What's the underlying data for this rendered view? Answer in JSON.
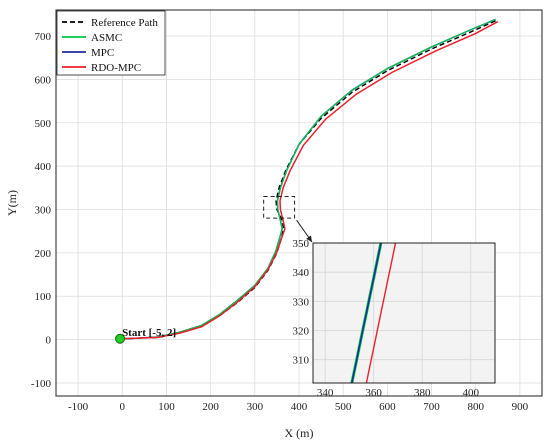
{
  "chart_data": {
    "type": "line",
    "title": "",
    "xlabel": "X (m)",
    "ylabel": "Y(m)",
    "xlim": [
      -150,
      950
    ],
    "ylim": [
      -130,
      760
    ],
    "xticks": [
      -100,
      0,
      100,
      200,
      300,
      400,
      500,
      600,
      700,
      800,
      900
    ],
    "yticks": [
      -100,
      0,
      100,
      200,
      300,
      400,
      500,
      600,
      700
    ],
    "grid": true,
    "legend_position": "top-left",
    "series": [
      {
        "name": "Reference Path",
        "color": "#000000",
        "style": "dashed",
        "x": [
          -5,
          30,
          80,
          130,
          180,
          220,
          260,
          300,
          330,
          350,
          362,
          365,
          360,
          350,
          348,
          355,
          370,
          400,
          450,
          520,
          600,
          700,
          790,
          845
        ],
        "y": [
          2,
          3,
          5,
          15,
          30,
          55,
          85,
          120,
          160,
          200,
          240,
          260,
          280,
          300,
          320,
          350,
          390,
          450,
          510,
          570,
          620,
          670,
          710,
          735
        ]
      },
      {
        "name": "ASMC",
        "color": "#00cc44",
        "style": "solid",
        "x": [
          -5,
          30,
          80,
          130,
          180,
          220,
          260,
          300,
          330,
          348,
          358,
          362,
          358,
          352,
          351,
          358,
          372,
          400,
          450,
          520,
          600,
          700,
          790,
          845
        ],
        "y": [
          2,
          3,
          6,
          17,
          33,
          58,
          90,
          125,
          165,
          205,
          240,
          255,
          275,
          300,
          320,
          350,
          390,
          450,
          515,
          575,
          625,
          675,
          715,
          738
        ]
      },
      {
        "name": "MPC",
        "color": "#1f2a9e",
        "style": "solid",
        "x": [
          -5,
          30,
          80,
          130,
          180,
          220,
          260,
          300,
          330,
          348,
          358,
          362,
          358,
          352,
          351,
          358,
          372,
          400,
          450,
          520,
          600,
          700,
          790,
          845
        ],
        "y": [
          2,
          3,
          6,
          17,
          33,
          58,
          90,
          125,
          165,
          205,
          240,
          255,
          275,
          300,
          320,
          350,
          390,
          450,
          515,
          575,
          625,
          675,
          715,
          738
        ]
      },
      {
        "name": "RDO-MPC",
        "color": "#e8202a",
        "style": "solid",
        "x": [
          -5,
          30,
          80,
          130,
          180,
          220,
          260,
          300,
          330,
          350,
          362,
          368,
          364,
          358,
          357,
          364,
          380,
          410,
          460,
          530,
          610,
          710,
          800,
          850
        ],
        "y": [
          2,
          3,
          5,
          15,
          30,
          55,
          86,
          122,
          162,
          202,
          238,
          255,
          275,
          300,
          320,
          350,
          390,
          448,
          508,
          566,
          616,
          666,
          706,
          733
        ]
      }
    ],
    "annotation": {
      "label": "Start [-5, 2]",
      "x": -5,
      "y": 2
    },
    "zoom_box": {
      "xlim": [
        320,
        390
      ],
      "ylim": [
        280,
        330
      ]
    },
    "inset": {
      "xlim": [
        335,
        410
      ],
      "ylim": [
        302,
        350
      ],
      "xticks": [
        340,
        360,
        380,
        400
      ],
      "yticks": [
        310,
        320,
        330,
        340,
        350
      ],
      "series": [
        {
          "name": "ASMC",
          "color": "#00cc44",
          "width": 3,
          "x": [
            351,
            352.5,
            354,
            355.5,
            357,
            358.5,
            360,
            361.5,
            363
          ],
          "y": [
            302,
            308,
            314,
            320,
            326,
            332,
            338,
            344,
            350
          ]
        },
        {
          "name": "MPC",
          "color": "#1f2a9e",
          "width": 1.6,
          "x": [
            351,
            352.5,
            354,
            355.5,
            357,
            358.5,
            360,
            361.5,
            363
          ],
          "y": [
            302,
            308,
            314,
            320,
            326,
            332,
            338,
            344,
            350
          ]
        },
        {
          "name": "RDO-MPC",
          "color": "#e8202a",
          "width": 1.4,
          "x": [
            357,
            358.5,
            360,
            361.5,
            363,
            364.5,
            366,
            367.5,
            369
          ],
          "y": [
            302,
            308,
            314,
            320,
            326,
            332,
            338,
            344,
            350
          ]
        }
      ]
    }
  }
}
